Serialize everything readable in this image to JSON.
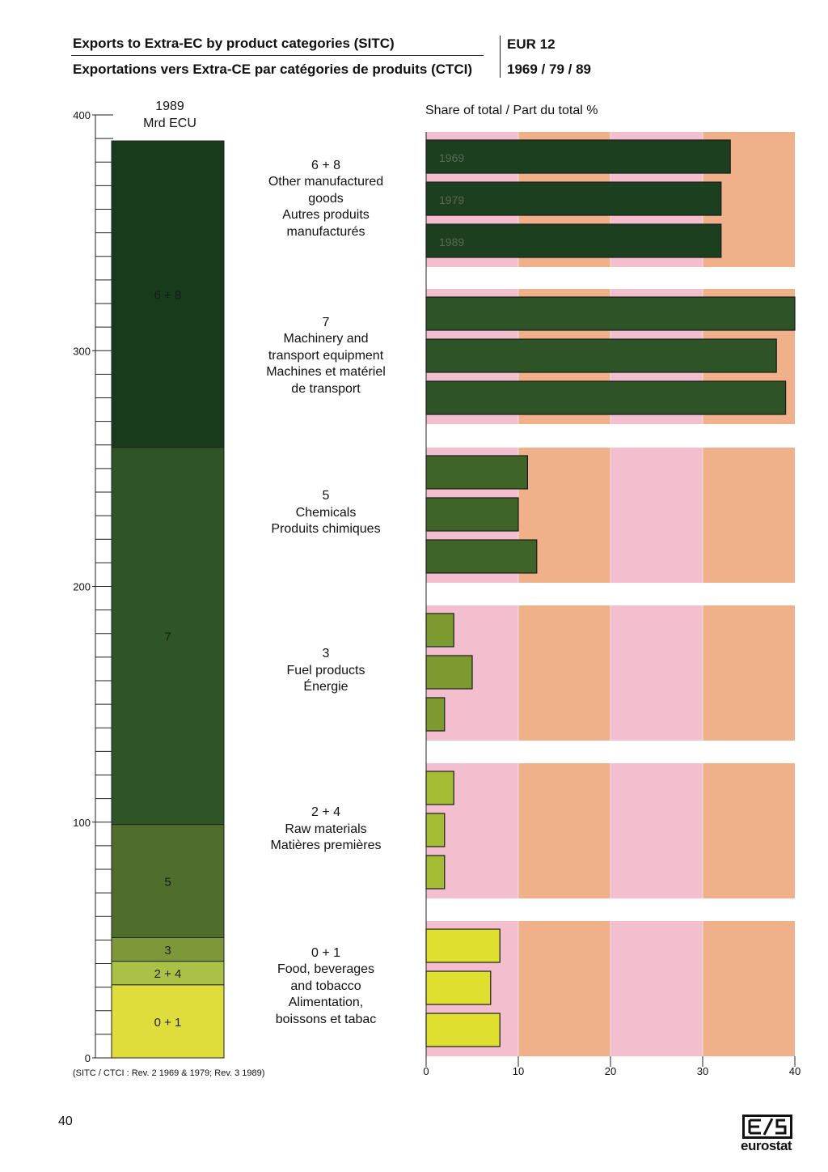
{
  "header": {
    "title_en": "Exports to Extra-EC by product categories (SITC)",
    "title_fr": "Exportations vers Extra-CE par catégories de produits (CTCI)",
    "region": "EUR 12",
    "years": "1969 / 79 / 89"
  },
  "left_axis": {
    "year": "1989",
    "unit": "Mrd ECU",
    "tick_labels": [
      "0",
      "100",
      "200",
      "300",
      "400"
    ]
  },
  "right_axis": {
    "title": "Share of total / Part du total  %",
    "tick_labels": [
      "0",
      "10",
      "20",
      "30",
      "40"
    ]
  },
  "footnote": "(SITC / CTCI : Rev. 2 1969 & 1979; Rev. 3 1989)",
  "page_number": "40",
  "logo_text": "eurostat",
  "categories": [
    {
      "code": "6 + 8",
      "en": [
        "Other manufactured",
        "goods"
      ],
      "fr": [
        "Autres produits",
        "manufacturés"
      ]
    },
    {
      "code": "7",
      "en": [
        "Machinery and",
        "transport equipment"
      ],
      "fr": [
        "Machines et matériel",
        "de transport"
      ]
    },
    {
      "code": "5",
      "en": [
        "Chemicals"
      ],
      "fr": [
        "Produits chimiques"
      ]
    },
    {
      "code": "3",
      "en": [
        "Fuel products"
      ],
      "fr": [
        "Énergie"
      ]
    },
    {
      "code": "2 + 4",
      "en": [
        "Raw materials"
      ],
      "fr": [
        "Matières premières"
      ]
    },
    {
      "code": "0 + 1",
      "en": [
        "Food, beverages",
        "and tobacco"
      ],
      "fr": [
        "Alimentation,",
        "boissons et tabac"
      ]
    }
  ],
  "chart_data": [
    {
      "type": "bar",
      "stacked": true,
      "title": "1989",
      "ylabel": "Mrd ECU",
      "ylim": [
        0,
        400
      ],
      "categories": [
        "0 + 1",
        "2 + 4",
        "3",
        "5",
        "7",
        "6 + 8"
      ],
      "values": [
        31,
        10,
        10,
        48,
        160,
        130
      ],
      "colors": [
        "#dedd3c",
        "#a9c146",
        "#7d9838",
        "#4f6e2c",
        "#2f5426",
        "#183b1c"
      ]
    },
    {
      "type": "bar",
      "orientation": "horizontal",
      "xlabel": "Share of total / Part du total  %",
      "xlim": [
        0,
        40
      ],
      "grid": true,
      "year_labels": [
        "1969",
        "1979",
        "1989"
      ],
      "categories": [
        "6 + 8",
        "7",
        "5",
        "3",
        "2 + 4",
        "0 + 1"
      ],
      "series": [
        {
          "name": "1969",
          "values": [
            33,
            40,
            11,
            3,
            3,
            8
          ]
        },
        {
          "name": "1979",
          "values": [
            32,
            38,
            10,
            5,
            2,
            7
          ]
        },
        {
          "name": "1989",
          "values": [
            32,
            39,
            12,
            2,
            2,
            8
          ]
        }
      ],
      "colors": [
        "#1c3f1f",
        "#2d5326",
        "#3f6428",
        "#7d9a31",
        "#a3bc33",
        "#dfdf30"
      ]
    }
  ]
}
